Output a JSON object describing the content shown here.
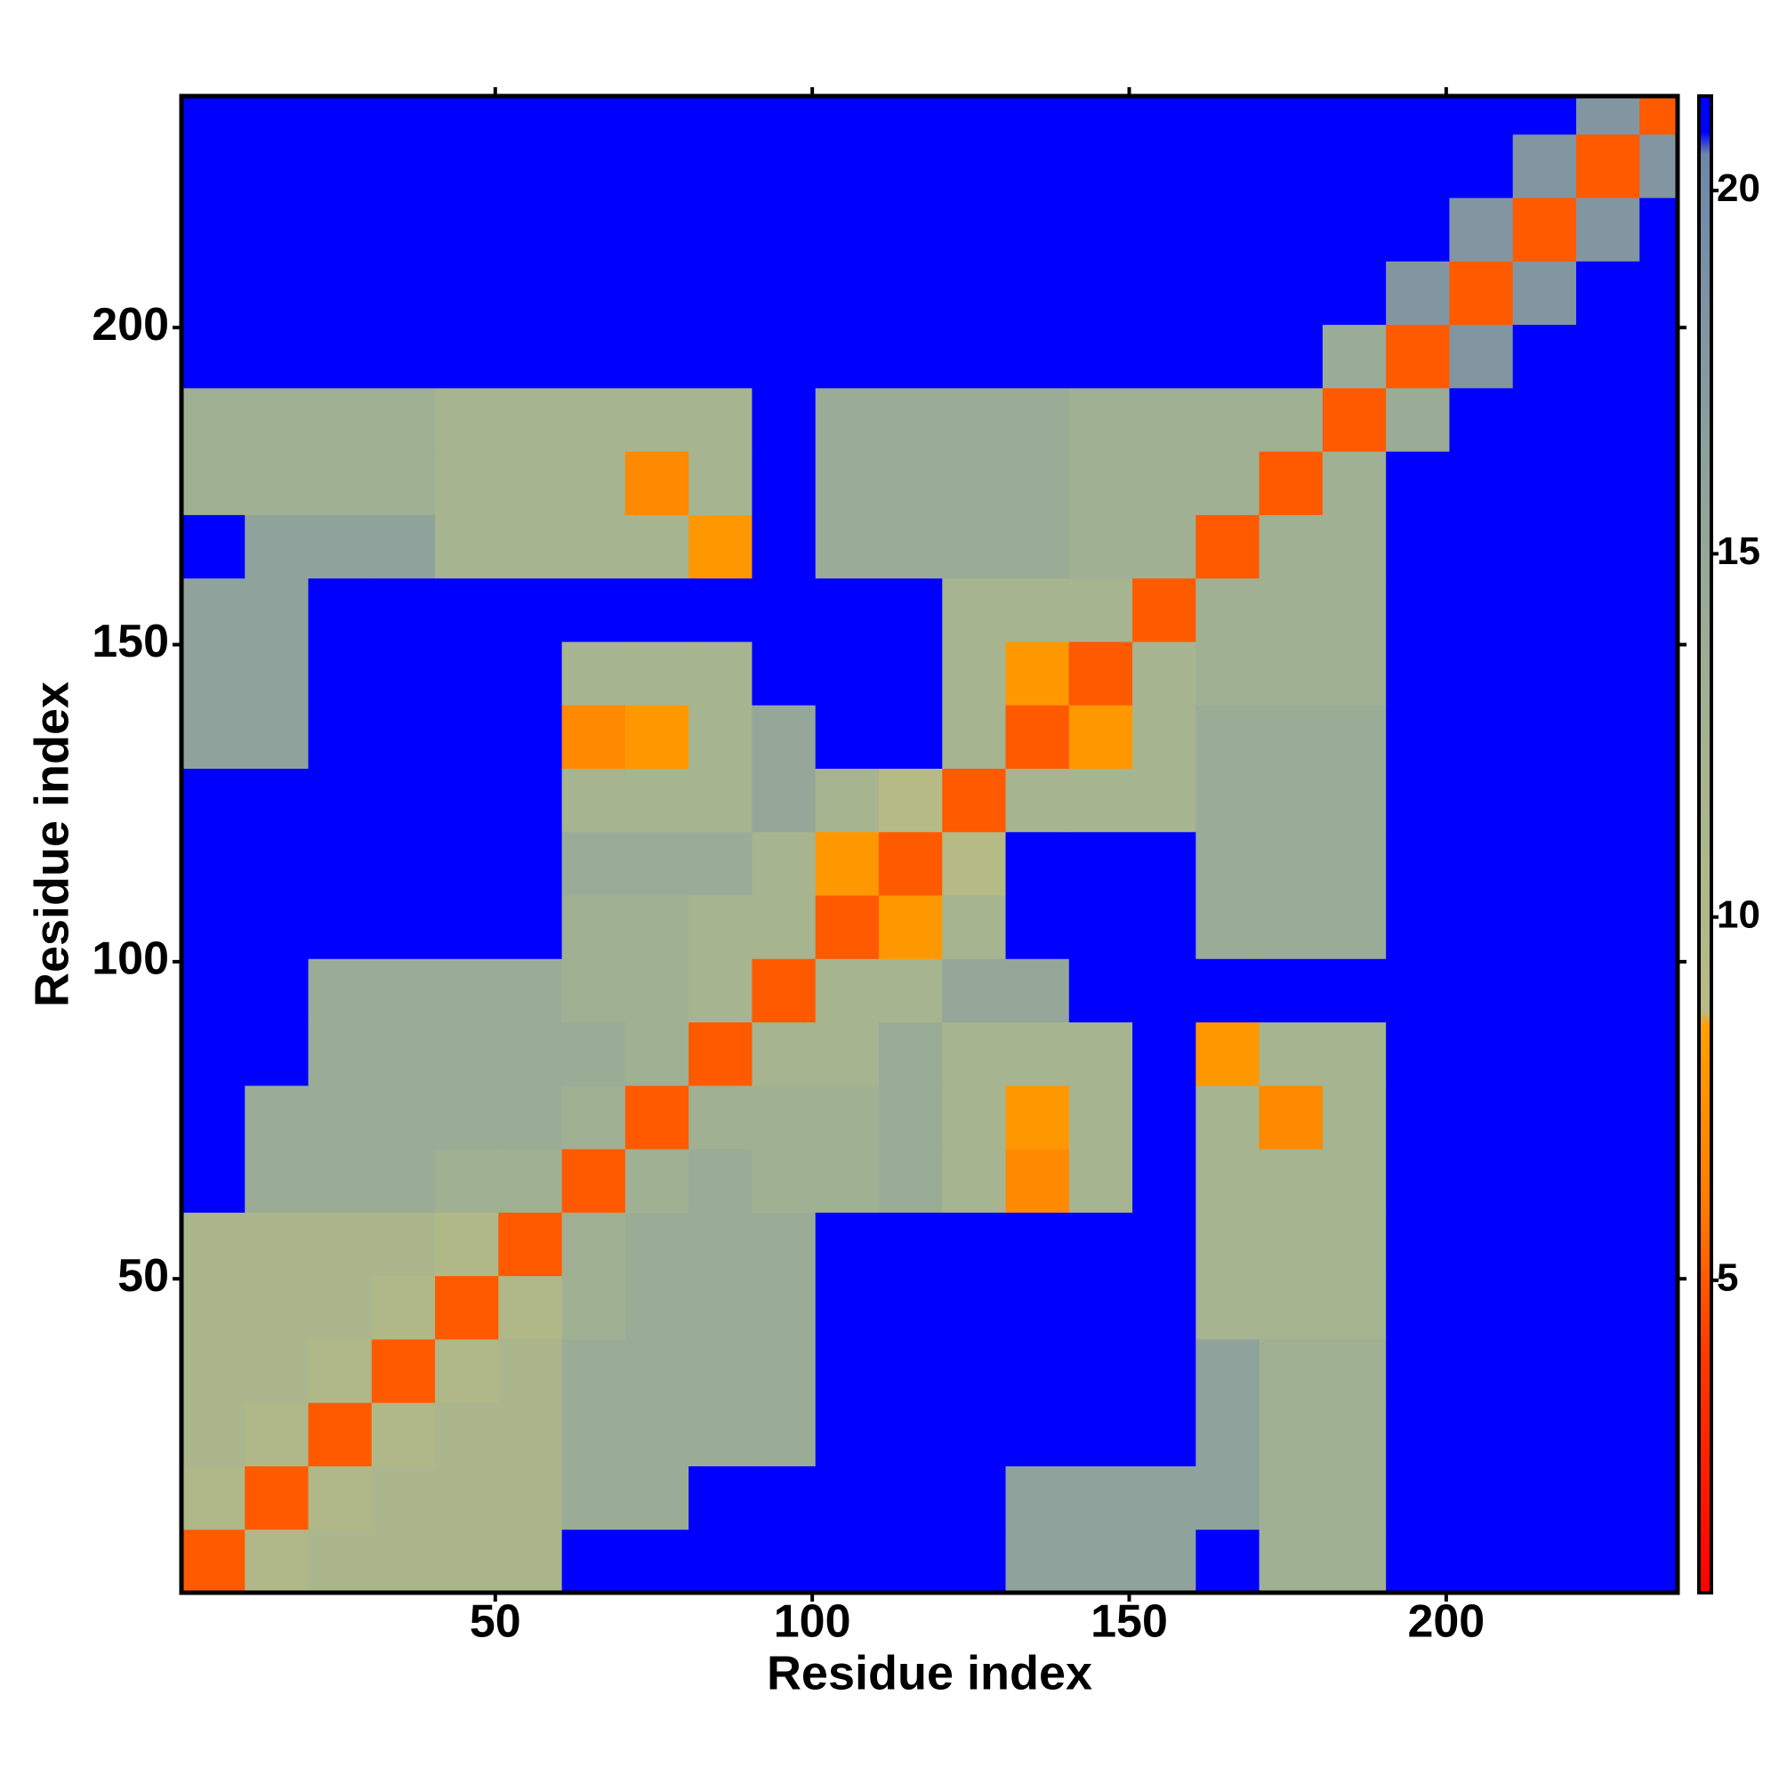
{
  "chart_data": {
    "type": "heatmap",
    "x_label": "Residue index",
    "y_label": "Residue index",
    "xlim": [
      0.5,
      236.5
    ],
    "ylim": [
      0.5,
      236.5
    ],
    "xticks": [
      50,
      100,
      150,
      200
    ],
    "yticks": [
      50,
      100,
      150,
      200
    ],
    "x_bins": [
      0.5,
      10.5,
      20.5,
      30.5,
      40.5,
      50.5,
      60.5,
      70.5,
      80.5,
      90.5,
      100.5,
      110.5,
      120.5,
      130.5,
      140.5,
      150.5,
      160.5,
      170.5,
      180.5,
      190.5,
      200.5,
      210.5,
      220.5,
      230.5,
      236.5
    ],
    "y_bins": [
      0.5,
      10.5,
      20.5,
      30.5,
      40.5,
      50.5,
      60.5,
      70.5,
      80.5,
      90.5,
      100.5,
      110.5,
      120.5,
      130.5,
      140.5,
      150.5,
      160.5,
      170.5,
      180.5,
      190.5,
      200.5,
      210.5,
      220.5,
      230.5,
      236.5
    ],
    "z": [
      [
        5,
        10,
        11,
        11,
        11,
        11,
        21,
        21,
        21,
        21,
        21,
        21,
        21,
        16,
        16,
        16,
        21,
        13,
        13,
        21,
        21,
        21,
        21,
        21
      ],
      [
        10,
        5,
        10,
        11,
        11,
        11,
        14,
        14,
        21,
        21,
        21,
        21,
        21,
        16,
        16,
        16,
        16,
        13,
        13,
        21,
        21,
        21,
        21,
        21
      ],
      [
        11,
        10,
        5,
        10,
        11,
        11,
        14,
        14,
        14,
        14,
        21,
        21,
        21,
        21,
        21,
        21,
        16,
        13,
        13,
        21,
        21,
        21,
        21,
        21
      ],
      [
        11,
        11,
        10,
        5,
        10,
        11,
        14,
        14,
        14,
        14,
        21,
        21,
        21,
        21,
        21,
        21,
        16,
        13,
        13,
        21,
        21,
        21,
        21,
        21
      ],
      [
        11,
        11,
        11,
        10,
        5,
        10,
        13,
        14,
        14,
        14,
        21,
        21,
        21,
        21,
        21,
        21,
        12,
        12,
        12,
        21,
        21,
        21,
        21,
        21
      ],
      [
        11,
        11,
        11,
        11,
        10,
        5,
        13,
        14,
        14,
        14,
        21,
        21,
        21,
        21,
        21,
        21,
        12,
        12,
        12,
        21,
        21,
        21,
        21,
        21
      ],
      [
        21,
        14,
        14,
        14,
        13,
        13,
        5,
        13,
        14,
        13,
        13,
        14,
        12,
        7,
        12,
        21,
        12,
        12,
        12,
        21,
        21,
        21,
        21,
        21
      ],
      [
        21,
        14,
        14,
        14,
        14,
        14,
        13,
        5,
        13,
        13,
        13,
        14,
        12,
        8,
        12,
        21,
        12,
        7,
        12,
        21,
        21,
        21,
        21,
        21
      ],
      [
        21,
        21,
        14,
        14,
        14,
        14,
        14,
        13,
        5,
        12,
        12,
        14,
        12,
        12,
        12,
        21,
        8,
        12,
        12,
        21,
        21,
        21,
        21,
        21
      ],
      [
        21,
        21,
        14,
        14,
        14,
        14,
        13,
        13,
        12,
        5,
        12,
        12,
        15,
        15,
        21,
        21,
        21,
        21,
        21,
        21,
        21,
        21,
        21,
        21
      ],
      [
        21,
        21,
        21,
        21,
        21,
        21,
        13,
        13,
        12,
        12,
        5,
        8,
        12,
        21,
        21,
        21,
        14,
        14,
        14,
        21,
        21,
        21,
        21,
        21
      ],
      [
        21,
        21,
        21,
        21,
        21,
        21,
        14,
        14,
        14,
        12,
        8,
        5,
        9,
        21,
        21,
        21,
        14,
        14,
        14,
        21,
        21,
        21,
        21,
        21
      ],
      [
        21,
        21,
        21,
        21,
        21,
        21,
        12,
        12,
        12,
        15,
        12,
        9,
        5,
        12,
        12,
        12,
        14,
        14,
        14,
        21,
        21,
        21,
        21,
        21
      ],
      [
        16,
        16,
        21,
        21,
        21,
        21,
        7,
        8,
        12,
        15,
        21,
        21,
        12,
        5,
        8,
        12,
        14,
        14,
        14,
        21,
        21,
        21,
        21,
        21
      ],
      [
        16,
        16,
        21,
        21,
        21,
        21,
        12,
        12,
        12,
        21,
        21,
        21,
        12,
        8,
        5,
        12,
        13,
        13,
        13,
        21,
        21,
        21,
        21,
        21
      ],
      [
        16,
        16,
        21,
        21,
        21,
        21,
        21,
        21,
        21,
        21,
        21,
        21,
        12,
        12,
        12,
        5,
        13,
        13,
        13,
        21,
        21,
        21,
        21,
        21
      ],
      [
        21,
        16,
        16,
        16,
        12,
        12,
        12,
        12,
        8,
        21,
        14,
        14,
        14,
        14,
        13,
        13,
        5,
        13,
        13,
        21,
        21,
        21,
        21,
        21
      ],
      [
        13,
        13,
        13,
        13,
        12,
        12,
        12,
        7,
        12,
        21,
        14,
        14,
        14,
        14,
        13,
        13,
        13,
        5,
        13,
        21,
        21,
        21,
        21,
        21
      ],
      [
        13,
        13,
        13,
        13,
        12,
        12,
        12,
        12,
        12,
        21,
        14,
        14,
        14,
        14,
        13,
        13,
        13,
        13,
        5,
        14,
        21,
        21,
        21,
        21
      ],
      [
        21,
        21,
        21,
        21,
        21,
        21,
        21,
        21,
        21,
        21,
        21,
        21,
        21,
        21,
        21,
        21,
        21,
        21,
        14,
        5,
        18,
        21,
        21,
        21
      ],
      [
        21,
        21,
        21,
        21,
        21,
        21,
        21,
        21,
        21,
        21,
        21,
        21,
        21,
        21,
        21,
        21,
        21,
        21,
        21,
        18,
        5,
        18,
        21,
        21
      ],
      [
        21,
        21,
        21,
        21,
        21,
        21,
        21,
        21,
        21,
        21,
        21,
        21,
        21,
        21,
        21,
        21,
        21,
        21,
        21,
        21,
        18,
        5,
        18,
        21
      ],
      [
        21,
        21,
        21,
        21,
        21,
        21,
        21,
        21,
        21,
        21,
        21,
        21,
        21,
        21,
        21,
        21,
        21,
        21,
        21,
        21,
        21,
        18,
        5,
        18
      ],
      [
        21,
        21,
        21,
        21,
        21,
        21,
        21,
        21,
        21,
        21,
        21,
        21,
        21,
        21,
        21,
        21,
        21,
        21,
        21,
        21,
        21,
        21,
        18,
        5
      ]
    ],
    "zlim": [
      0.7,
      21.3
    ],
    "zticks": [
      5,
      10,
      15,
      20
    ],
    "colorscale": [
      [
        0.7,
        "#ff0000"
      ],
      [
        4,
        "#ff3a00"
      ],
      [
        6,
        "#ff7a00"
      ],
      [
        8.5,
        "#ffa000"
      ],
      [
        8.7,
        "#b8bb84"
      ],
      [
        12,
        "#a6b48f"
      ],
      [
        16,
        "#8fa39c"
      ],
      [
        20.5,
        "#6f86a8"
      ],
      [
        20.8,
        "#0000ff"
      ],
      [
        21.3,
        "#0000ff"
      ]
    ]
  }
}
